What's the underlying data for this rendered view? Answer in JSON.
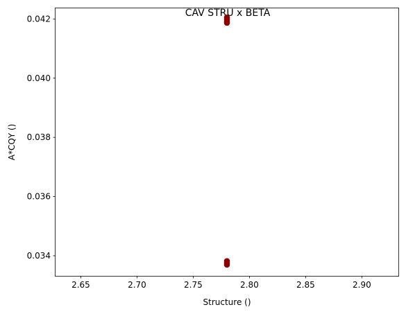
{
  "chart_data": {
    "type": "scatter",
    "title": "CAV STRU x BETA",
    "xlabel": "Structure ()",
    "ylabel": "A*CQY ()",
    "xlim": [
      2.6275,
      2.9325
    ],
    "ylim": [
      0.03332,
      0.04236
    ],
    "xticks": [
      2.65,
      2.7,
      2.75,
      2.8,
      2.85,
      2.9
    ],
    "xtick_labels": [
      "2.65",
      "2.70",
      "2.75",
      "2.80",
      "2.85",
      "2.90"
    ],
    "yticks": [
      0.034,
      0.036,
      0.038,
      0.04,
      0.042
    ],
    "ytick_labels": [
      "0.034",
      "0.036",
      "0.038",
      "0.040",
      "0.042"
    ],
    "grid": false,
    "series": [
      {
        "color": "#8b0000",
        "points": [
          {
            "x": 2.78,
            "y": 0.04205
          },
          {
            "x": 2.78,
            "y": 0.04199
          },
          {
            "x": 2.78,
            "y": 0.04192
          },
          {
            "x": 2.78,
            "y": 0.04187
          },
          {
            "x": 2.78,
            "y": 0.03382
          },
          {
            "x": 2.78,
            "y": 0.03376
          },
          {
            "x": 2.78,
            "y": 0.0337
          }
        ]
      }
    ]
  }
}
